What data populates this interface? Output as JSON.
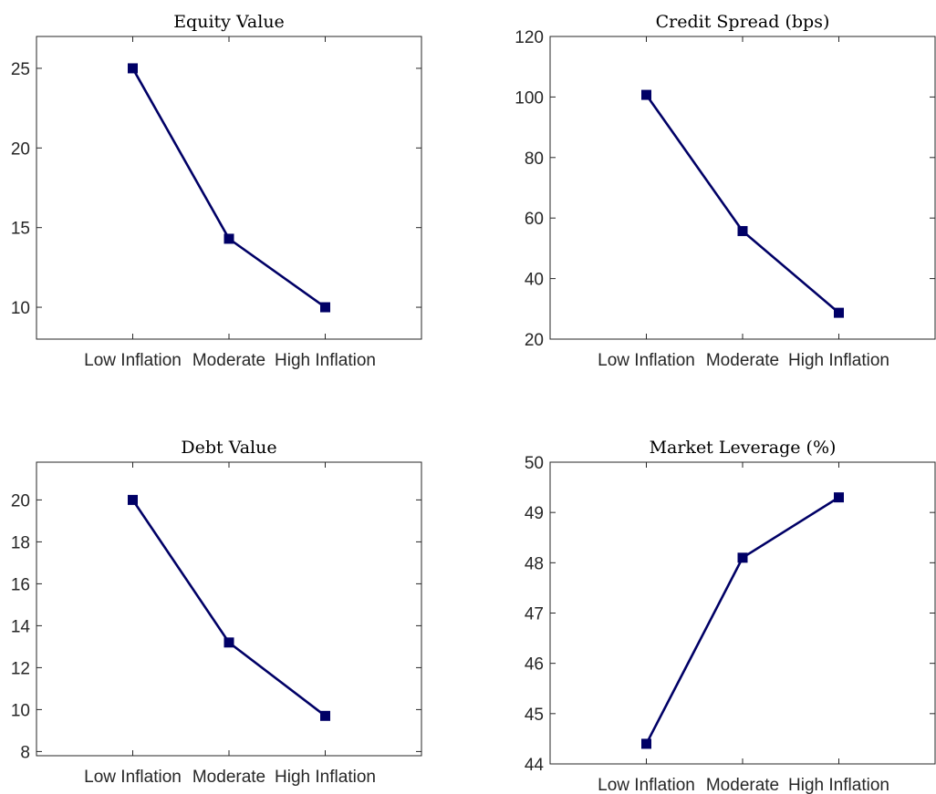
{
  "colors": {
    "series": "#000066",
    "axis": "#262626"
  },
  "chart_data": [
    {
      "type": "line",
      "title": "Equity Value",
      "categories": [
        "Low Inflation",
        "Moderate",
        "High Inflation"
      ],
      "values": [
        25.0,
        14.3,
        10.0
      ],
      "yticks": [
        10,
        15,
        20,
        25
      ],
      "ylim": [
        8,
        27
      ],
      "marker": "square",
      "grid": false
    },
    {
      "type": "line",
      "title": "Credit Spread (bps)",
      "categories": [
        "Low Inflation",
        "Moderate",
        "High Inflation"
      ],
      "values": [
        100.7,
        55.7,
        28.7
      ],
      "yticks": [
        20,
        40,
        60,
        80,
        100,
        120
      ],
      "ylim": [
        20,
        120
      ],
      "marker": "square",
      "grid": false
    },
    {
      "type": "line",
      "title": "Debt Value",
      "categories": [
        "Low Inflation",
        "Moderate",
        "High Inflation"
      ],
      "values": [
        20.0,
        13.2,
        9.7
      ],
      "yticks": [
        8,
        10,
        12,
        14,
        16,
        18,
        20
      ],
      "ylim": [
        7.8,
        21.8
      ],
      "marker": "square",
      "grid": false
    },
    {
      "type": "line",
      "title": "Market Leverage (%)",
      "categories": [
        "Low Inflation",
        "Moderate",
        "High Inflation"
      ],
      "values": [
        44.4,
        48.1,
        49.3
      ],
      "yticks": [
        44,
        45,
        46,
        47,
        48,
        49,
        50
      ],
      "ylim": [
        44,
        50
      ],
      "marker": "square",
      "grid": false
    }
  ]
}
